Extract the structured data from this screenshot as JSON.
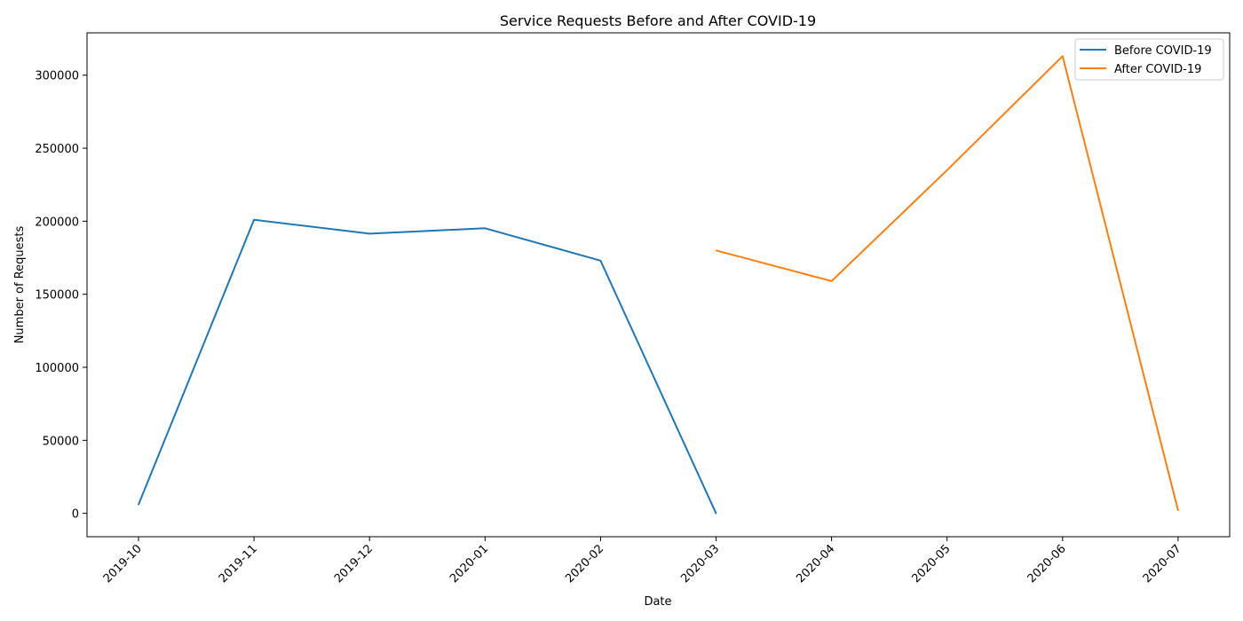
{
  "chart_data": {
    "type": "line",
    "title": "Service Requests Before and After COVID-19",
    "xlabel": "Date",
    "ylabel": "Number of Requests",
    "x_categories": [
      "2019-10",
      "2019-11",
      "2019-12",
      "2020-01",
      "2020-02",
      "2020-03",
      "2020-04",
      "2020-05",
      "2020-06",
      "2020-07"
    ],
    "yticks": [
      0,
      50000,
      100000,
      150000,
      200000,
      250000,
      300000
    ],
    "ylim": [
      -16000,
      329000
    ],
    "grid": false,
    "legend_position": "top-right",
    "series": [
      {
        "name": "Before COVID-19",
        "color": "#1f77b4",
        "x": [
          "2019-10",
          "2019-11",
          "2019-12",
          "2020-01",
          "2020-02",
          "2020-03"
        ],
        "values": [
          6000,
          201000,
          191500,
          195200,
          173000,
          0
        ]
      },
      {
        "name": "After COVID-19",
        "color": "#ff7f0e",
        "x": [
          "2020-03",
          "2020-04",
          "2020-05",
          "2020-06",
          "2020-07"
        ],
        "values": [
          180000,
          159000,
          235000,
          313000,
          2000
        ]
      }
    ]
  }
}
